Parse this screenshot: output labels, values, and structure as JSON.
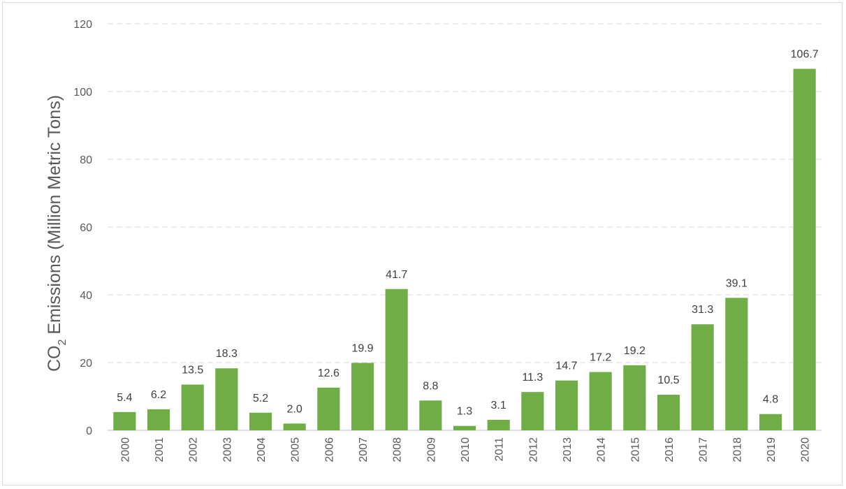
{
  "chart_data": {
    "type": "bar",
    "title": "",
    "xlabel": "",
    "ylabel": "CO2 Emissions (Million Metric Tons)",
    "ylabel_parts": {
      "before": "CO",
      "subscript": "2",
      "after": " Emissions (Million Metric Tons)"
    },
    "categories": [
      "2000",
      "2001",
      "2002",
      "2003",
      "2004",
      "2005",
      "2006",
      "2007",
      "2008",
      "2009",
      "2010",
      "2011",
      "2012",
      "2013",
      "2014",
      "2015",
      "2016",
      "2017",
      "2018",
      "2019",
      "2020"
    ],
    "values": [
      5.4,
      6.2,
      13.5,
      18.3,
      5.2,
      2.0,
      12.6,
      19.9,
      41.7,
      8.8,
      1.3,
      3.1,
      11.3,
      14.7,
      17.2,
      19.2,
      10.5,
      31.3,
      39.1,
      4.8,
      106.7
    ],
    "data_labels": [
      "5.4",
      "6.2",
      "13.5",
      "18.3",
      "5.2",
      "2.0",
      "12.6",
      "19.9",
      "41.7",
      "8.8",
      "1.3",
      "3.1",
      "11.3",
      "14.7",
      "17.2",
      "19.2",
      "10.5",
      "31.3",
      "39.1",
      "4.8",
      "106.7"
    ],
    "ylim": [
      0,
      120
    ],
    "yticks": [
      0,
      20,
      40,
      60,
      80,
      100,
      120
    ],
    "ytick_labels": [
      "0",
      "20",
      "40",
      "60",
      "80",
      "100",
      "120"
    ],
    "grid": "horizontal dashed",
    "legend": "none",
    "colors": {
      "bar": "#70ad47",
      "grid": "#d9d9d9",
      "axis": "#bfbfbf",
      "text": "#595959"
    }
  }
}
